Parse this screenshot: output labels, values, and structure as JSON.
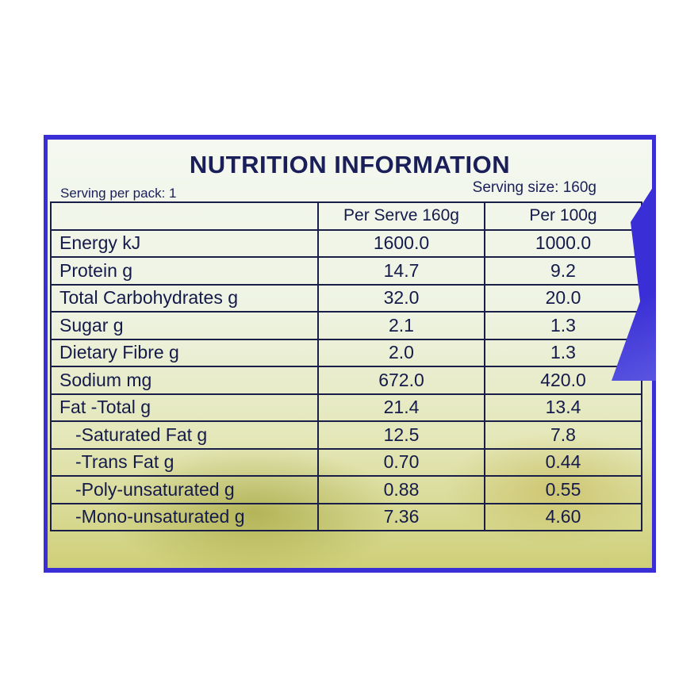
{
  "title": "NUTRITION INFORMATION",
  "serving_per_pack": "Serving per pack: 1",
  "serving_size": "Serving size: 160g",
  "columns": [
    "",
    "Per Serve 160g",
    "Per 100g"
  ],
  "rows": [
    {
      "name": "Energy kJ",
      "per_serve": "1600.0",
      "per_100g": "1000.0",
      "indent": false
    },
    {
      "name": "Protein g",
      "per_serve": "14.7",
      "per_100g": "9.2",
      "indent": false
    },
    {
      "name": "Total Carbohydrates g",
      "per_serve": "32.0",
      "per_100g": "20.0",
      "indent": false
    },
    {
      "name": "Sugar g",
      "per_serve": "2.1",
      "per_100g": "1.3",
      "indent": false
    },
    {
      "name": "Dietary Fibre g",
      "per_serve": "2.0",
      "per_100g": "1.3",
      "indent": false
    },
    {
      "name": "Sodium mg",
      "per_serve": "672.0",
      "per_100g": "420.0",
      "indent": false
    },
    {
      "name": "Fat -Total g",
      "per_serve": "21.4",
      "per_100g": "13.4",
      "indent": false
    },
    {
      "name": "-Saturated Fat g",
      "per_serve": "12.5",
      "per_100g": "7.8",
      "indent": true
    },
    {
      "name": "-Trans Fat g",
      "per_serve": "0.70",
      "per_100g": "0.44",
      "indent": true
    },
    {
      "name": "-Poly-unsaturated g",
      "per_serve": "0.88",
      "per_100g": "0.55",
      "indent": true
    },
    {
      "name": "-Mono-unsaturated g",
      "per_serve": "7.36",
      "per_100g": "4.60",
      "indent": true
    }
  ],
  "colors": {
    "background_blue": "#3a2fd6",
    "text": "#1a1f5a"
  }
}
